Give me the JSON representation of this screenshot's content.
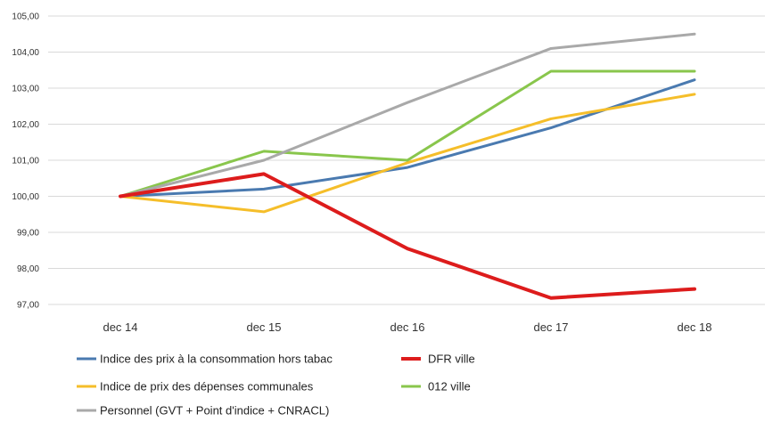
{
  "chart_data": {
    "type": "line",
    "title": "",
    "xlabel": "",
    "ylabel": "",
    "categories": [
      "dec 14",
      "dec 15",
      "dec 16",
      "dec 17",
      "dec 18"
    ],
    "ylim": [
      97,
      105
    ],
    "yticks": [
      97,
      98,
      99,
      100,
      101,
      102,
      103,
      104,
      105
    ],
    "ytick_labels": [
      "97,00",
      "98,00",
      "99,00",
      "100,00",
      "101,00",
      "102,00",
      "103,00",
      "104,00",
      "105,00"
    ],
    "grid": "horizontal",
    "legend_position": "bottom",
    "series": [
      {
        "name": "Indice des prix à la consommation hors tabac",
        "color": "#4a7ab0",
        "emphasis": false,
        "values": [
          100.0,
          100.2,
          100.8,
          101.9,
          103.23
        ]
      },
      {
        "name": "DFR ville",
        "color": "#dd1c1c",
        "emphasis": true,
        "values": [
          100.0,
          100.62,
          98.55,
          97.18,
          97.43
        ]
      },
      {
        "name": "Indice de prix des dépenses communales",
        "color": "#f5be2a",
        "emphasis": false,
        "values": [
          100.0,
          99.57,
          100.93,
          102.15,
          102.83
        ]
      },
      {
        "name": "012 ville",
        "color": "#89c64c",
        "emphasis": false,
        "values": [
          100.0,
          101.25,
          101.0,
          103.47,
          103.47
        ]
      },
      {
        "name": "Personnel (GVT + Point d'indice + CNRACL)",
        "color": "#a9a9a9",
        "emphasis": false,
        "values": [
          100.0,
          101.0,
          102.6,
          104.1,
          104.5
        ]
      }
    ]
  }
}
